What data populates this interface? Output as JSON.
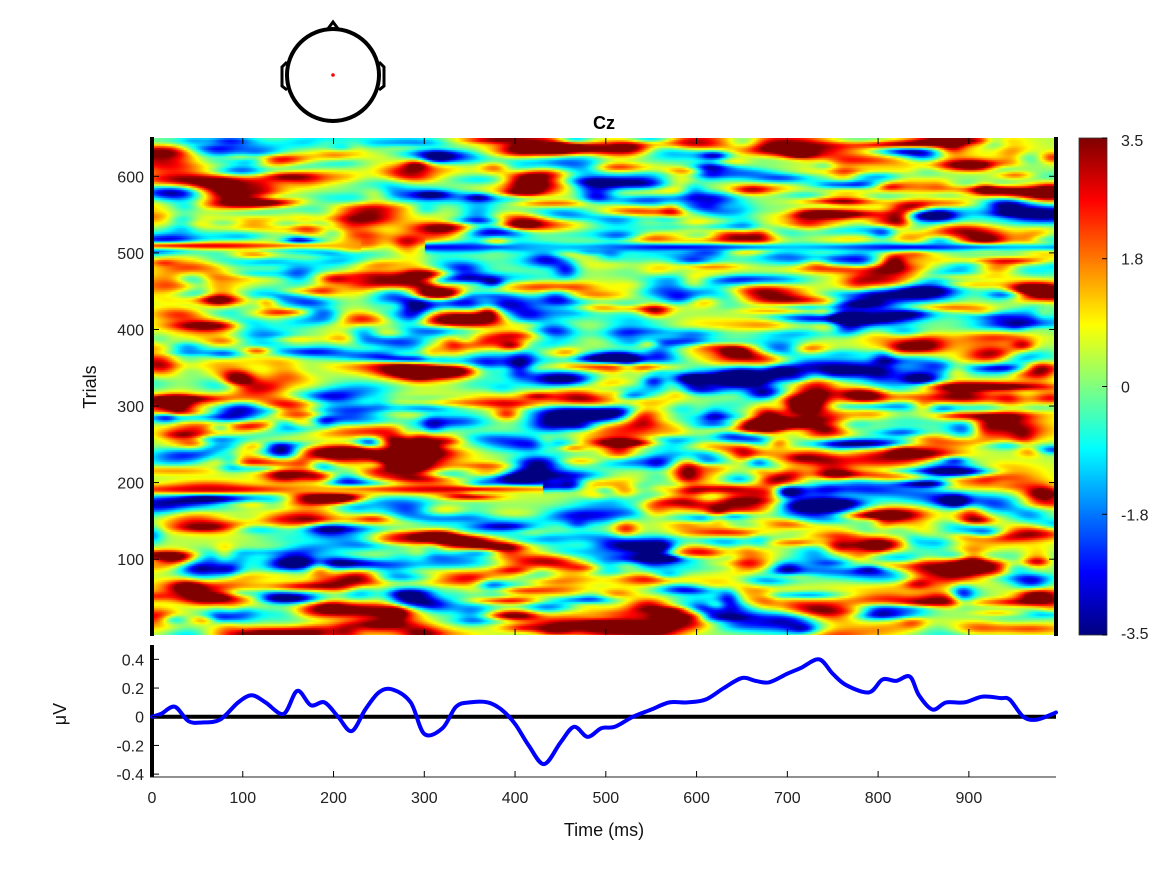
{
  "chart_data": [
    {
      "type": "heatmap",
      "title": "Cz",
      "ylabel": "Trials",
      "xlim": [
        0,
        996
      ],
      "ylim": [
        1,
        650
      ],
      "yticks": [
        100,
        200,
        300,
        400,
        500,
        600
      ],
      "colorbar": {
        "clim": [
          -3.5,
          3.5
        ],
        "ticks": [
          3.5,
          1.8,
          0,
          -1.8,
          -3.5
        ],
        "tick_labels": [
          "3.5",
          "1.8",
          "0",
          "-1.8",
          "-3.5"
        ],
        "colormap": "jet"
      },
      "bands": [
        {
          "trial": 510,
          "start": 0,
          "end": 230,
          "value": 2.4
        },
        {
          "trial": 508,
          "start": 300,
          "end": 996,
          "value": -2.3
        },
        {
          "trial": 192,
          "start": 0,
          "end": 430,
          "value": 2.6
        }
      ],
      "head_map": {
        "electrode": "Cz",
        "marker_color": "#ff0000"
      }
    },
    {
      "type": "line",
      "xlabel": "Time (ms)",
      "ylabel": "μV",
      "xlim": [
        0,
        996
      ],
      "ylim": [
        -0.42,
        0.5
      ],
      "xticks": [
        0,
        100,
        200,
        300,
        400,
        500,
        600,
        700,
        800,
        900
      ],
      "yticks": [
        -0.4,
        -0.2,
        0,
        0.2,
        0.4
      ],
      "series": [
        {
          "color": "#0000ff",
          "x": [
            0,
            10,
            25,
            40,
            55,
            75,
            95,
            110,
            125,
            145,
            160,
            175,
            190,
            205,
            220,
            235,
            250,
            265,
            285,
            300,
            320,
            335,
            350,
            370,
            385,
            400,
            415,
            432,
            450,
            465,
            480,
            495,
            510,
            530,
            550,
            570,
            590,
            610,
            630,
            650,
            665,
            680,
            700,
            715,
            735,
            750,
            765,
            790,
            805,
            820,
            835,
            845,
            860,
            875,
            895,
            915,
            935,
            945,
            960,
            975,
            996
          ],
          "y": [
            0.0,
            0.02,
            0.07,
            -0.03,
            -0.04,
            -0.02,
            0.1,
            0.15,
            0.1,
            0.02,
            0.18,
            0.08,
            0.1,
            0.0,
            -0.1,
            0.05,
            0.17,
            0.19,
            0.1,
            -0.12,
            -0.08,
            0.07,
            0.1,
            0.1,
            0.05,
            -0.05,
            -0.2,
            -0.33,
            -0.18,
            -0.07,
            -0.14,
            -0.08,
            -0.07,
            0.0,
            0.05,
            0.1,
            0.1,
            0.12,
            0.2,
            0.27,
            0.25,
            0.24,
            0.3,
            0.34,
            0.4,
            0.3,
            0.22,
            0.17,
            0.26,
            0.25,
            0.28,
            0.15,
            0.05,
            0.1,
            0.1,
            0.14,
            0.13,
            0.12,
            0.0,
            -0.02,
            0.03
          ]
        }
      ],
      "baseline": 0
    }
  ]
}
